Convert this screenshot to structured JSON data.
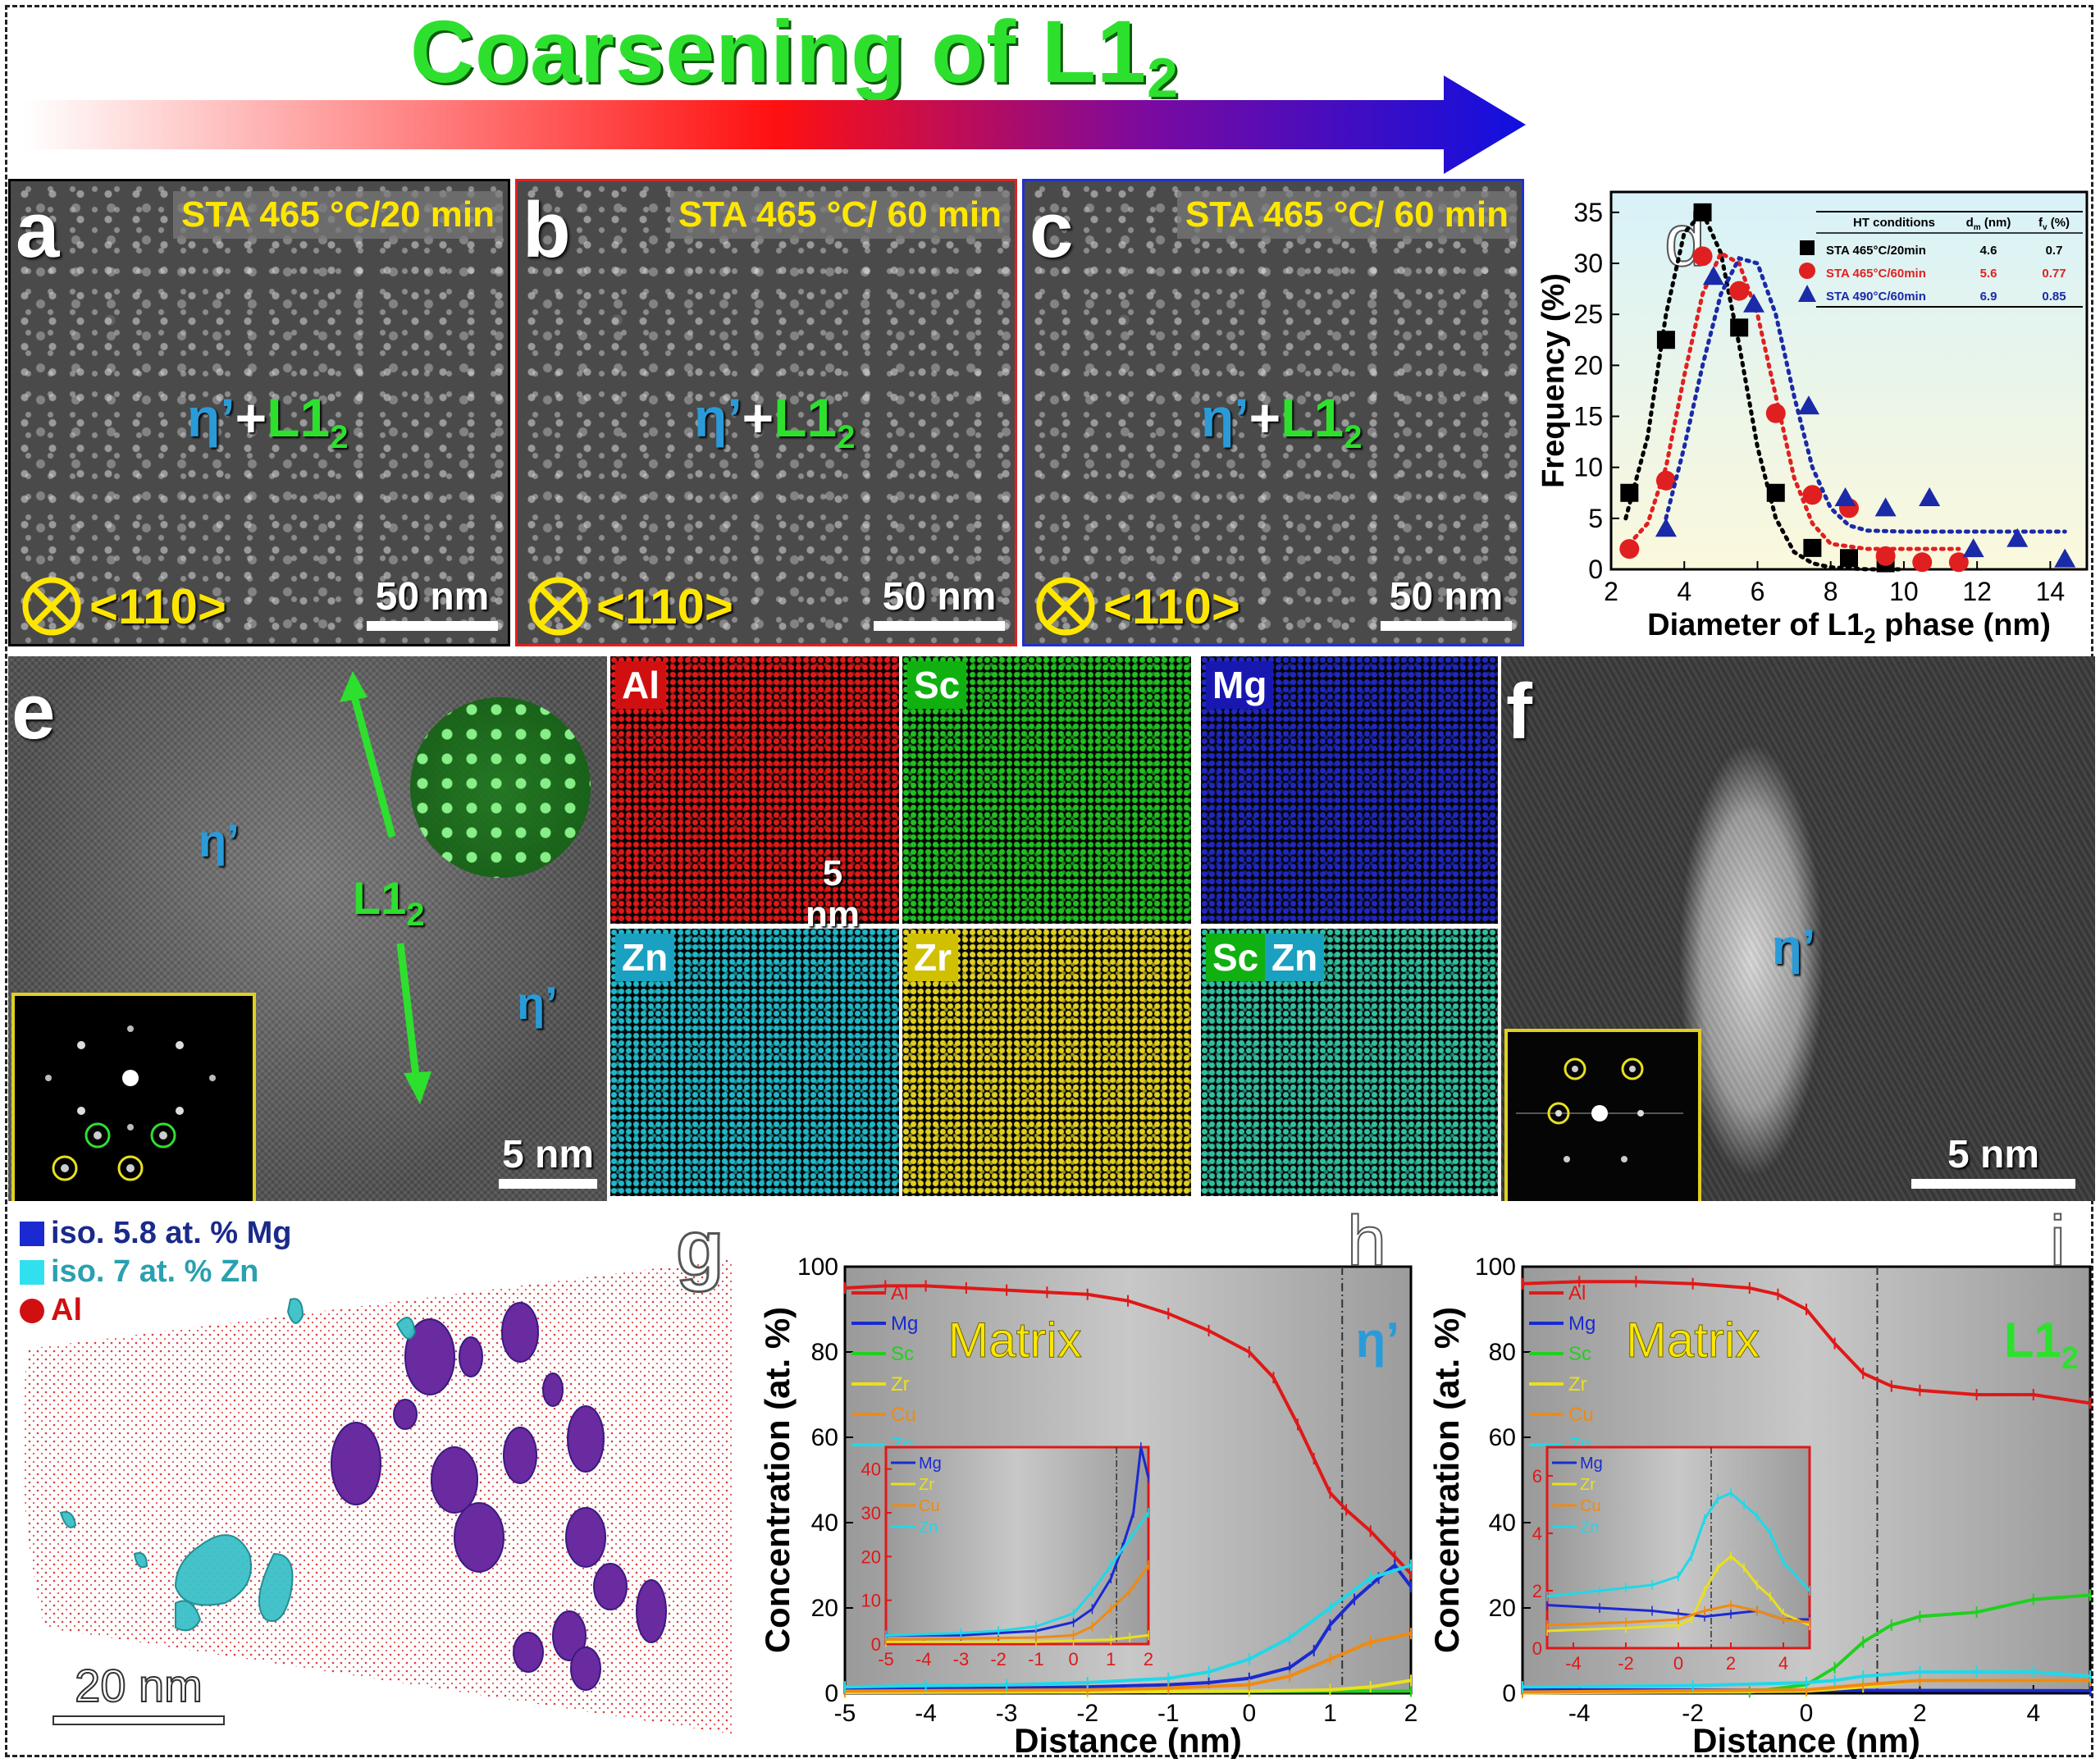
{
  "title": {
    "main": "Coarsening of L1",
    "sub": "2"
  },
  "panels_stem": [
    {
      "tag": "a",
      "condition": "STA 465 °C/20 min",
      "phase_eta": "η’",
      "phase_plus": "+",
      "phase_l1": "L1",
      "phase_sub": "2",
      "zone": "<110>",
      "scale": "50 nm",
      "border": "#000000"
    },
    {
      "tag": "b",
      "condition": "STA 465 °C/ 60 min",
      "phase_eta": "η’",
      "phase_plus": "+",
      "phase_l1": "L1",
      "phase_sub": "2",
      "zone": "<110>",
      "scale": "50 nm",
      "border": "#e02020"
    },
    {
      "tag": "c",
      "condition": "STA 465 °C/ 60 min",
      "phase_eta": "η’",
      "phase_plus": "+",
      "phase_l1": "L1",
      "phase_sub": "2",
      "zone": "<110>",
      "scale": "50 nm",
      "border": "#2030d0"
    }
  ],
  "panel_e": {
    "tag": "e",
    "eta1": "η’",
    "eta2": "η’",
    "l12": "L1",
    "l12_sub": "2",
    "scale": "5 nm"
  },
  "eds_maps": [
    {
      "label": "Al",
      "color": "#e01818",
      "chip": "#d01010"
    },
    {
      "label": "Sc",
      "color": "#20c020",
      "chip": "#10b010"
    },
    {
      "label": "Mg",
      "color": "#2028c0",
      "chip": "#1818b0"
    },
    {
      "label": "Zn",
      "color": "#20b8c8",
      "chip": "#1aa0c0"
    },
    {
      "label": "Zr",
      "color": "#e0d020",
      "chip": "#d0c000"
    },
    {
      "label": "Sc",
      "label2": "Zn",
      "color": "#30c0a0",
      "chip": "#10b010",
      "chip2": "#1aa0c0"
    }
  ],
  "eds_scale": "5 nm",
  "panel_f": {
    "tag": "f",
    "eta": "η’",
    "scale": "5 nm"
  },
  "panel_g": {
    "tag": "g",
    "legend": [
      "iso. 5.8 at. % Mg",
      "iso. 7 at. % Zn",
      "Al"
    ],
    "scale": "20 nm"
  },
  "chart_data": [
    {
      "id": "d",
      "type": "scatter",
      "tag": "d",
      "xlabel": "Diameter of L1",
      "xlabel_sub": "2",
      "xlabel_tail": " phase (nm)",
      "ylabel": "Frequency (%)",
      "xlim": [
        2,
        15
      ],
      "ylim": [
        0,
        37
      ],
      "xticks": [
        2,
        4,
        6,
        8,
        10,
        12,
        14
      ],
      "yticks": [
        0,
        5,
        10,
        15,
        20,
        25,
        30,
        35
      ],
      "table": {
        "headers": [
          "HT conditions",
          "d",
          "m",
          " (nm)",
          "f",
          "v",
          " (%)"
        ],
        "rows": [
          {
            "cond": "STA 465°C/20min",
            "dm": "4.6",
            "fv": "0.7",
            "color": "#000000"
          },
          {
            "cond": "STA 465°C/60min",
            "dm": "5.6",
            "fv": "0.77",
            "color": "#e02020"
          },
          {
            "cond": "STA 490°C/60min",
            "dm": "6.9",
            "fv": "0.85",
            "color": "#1a2aa8"
          }
        ]
      },
      "series": [
        {
          "marker": "square",
          "color": "#000000",
          "x": [
            2.5,
            3.5,
            4.5,
            5.5,
            6.5,
            7.5,
            8.5,
            9.5
          ],
          "y": [
            7.5,
            22.5,
            35,
            23.7,
            7.5,
            2.1,
            1.1,
            0.6
          ],
          "fit_x": [
            2.4,
            3,
            3.5,
            4,
            4.5,
            5,
            5.5,
            6,
            6.5,
            7,
            7.5,
            8,
            9,
            10
          ],
          "fit_y": [
            5,
            13,
            25,
            33,
            35,
            31,
            22,
            12,
            5,
            1.7,
            0.6,
            0.2,
            0,
            0
          ]
        },
        {
          "marker": "circle",
          "color": "#e02020",
          "x": [
            2.5,
            3.5,
            4.5,
            5.5,
            6.5,
            7.5,
            8.5,
            9.5,
            10.5,
            11.5
          ],
          "y": [
            2,
            8.7,
            30.7,
            27.3,
            15.3,
            7.3,
            6,
            1.3,
            0.7,
            0.7
          ],
          "fit_x": [
            2.5,
            3,
            3.5,
            4,
            4.5,
            5,
            5.5,
            6,
            6.5,
            7,
            7.5,
            8,
            9,
            10,
            11.5
          ],
          "fit_y": [
            2.5,
            4.5,
            10,
            19,
            27,
            31,
            30,
            25,
            17,
            9,
            4.5,
            2.5,
            2,
            2,
            2
          ]
        },
        {
          "marker": "triangle",
          "color": "#1a2aa8",
          "x": [
            3.5,
            4.8,
            5.9,
            7.4,
            8.4,
            9.5,
            10.7,
            11.9,
            13.1,
            14.4
          ],
          "y": [
            4,
            28.7,
            26,
            16,
            7,
            6,
            7,
            2,
            3,
            1
          ],
          "fit_x": [
            3.5,
            4,
            4.5,
            5,
            5.5,
            6,
            6.5,
            7,
            7.5,
            8,
            8.5,
            9,
            10,
            11,
            12,
            13,
            14.4
          ],
          "fit_y": [
            5,
            12,
            20,
            27,
            30.5,
            30,
            25,
            17,
            10,
            6,
            4.3,
            3.8,
            3.7,
            3.7,
            3.7,
            3.7,
            3.7
          ]
        }
      ]
    },
    {
      "id": "h",
      "type": "line",
      "tag": "h",
      "xlabel": "Distance (nm)",
      "ylabel": "Concentration (at. %)",
      "xlim": [
        -5,
        2
      ],
      "ylim": [
        0,
        100
      ],
      "xticks": [
        -5,
        -4,
        -3,
        -2,
        -1,
        0,
        1,
        2
      ],
      "yticks": [
        0,
        20,
        40,
        60,
        80,
        100
      ],
      "region_left": "Matrix",
      "region_right": "η’",
      "divider_x": 1.15,
      "legend": [
        {
          "name": "Al",
          "color": "#e01818"
        },
        {
          "name": "Mg",
          "color": "#1a2ad0"
        },
        {
          "name": "Sc",
          "color": "#20d020"
        },
        {
          "name": "Zr",
          "color": "#e8e020"
        },
        {
          "name": "Cu",
          "color": "#f08a10"
        },
        {
          "name": "Zn",
          "color": "#20d8e8"
        }
      ],
      "series": [
        {
          "name": "Al",
          "color": "#e01818",
          "x": [
            -5,
            -4.5,
            -4,
            -3.5,
            -3,
            -2.5,
            -2,
            -1.5,
            -1,
            -0.5,
            0,
            0.3,
            0.6,
            0.8,
            1,
            1.2,
            1.5,
            1.8,
            2
          ],
          "y": [
            95,
            95.5,
            95.5,
            95,
            94.5,
            94,
            93.5,
            92,
            89,
            85,
            80,
            74,
            63,
            55,
            47,
            43,
            38,
            32,
            28
          ]
        },
        {
          "name": "Mg",
          "color": "#1a2ad0",
          "x": [
            -5,
            -4,
            -3,
            -2,
            -1,
            -0.5,
            0,
            0.5,
            0.8,
            1,
            1.3,
            1.6,
            1.8,
            2
          ],
          "y": [
            1,
            1,
            1.2,
            1.5,
            2,
            2.5,
            3.5,
            6,
            10,
            16,
            22,
            27,
            30,
            25
          ]
        },
        {
          "name": "Sc",
          "color": "#20d020",
          "x": [
            -5,
            2
          ],
          "y": [
            0.3,
            0.5
          ]
        },
        {
          "name": "Zr",
          "color": "#e8e020",
          "x": [
            -5,
            -2,
            0,
            1,
            1.5,
            2
          ],
          "y": [
            0.2,
            0.3,
            0.5,
            0.8,
            1.5,
            3
          ]
        },
        {
          "name": "Cu",
          "color": "#f08a10",
          "x": [
            -5,
            -2,
            -1,
            0,
            0.5,
            1,
            1.5,
            2
          ],
          "y": [
            0.5,
            0.8,
            1.2,
            2,
            4,
            8,
            12,
            14
          ]
        },
        {
          "name": "Zn",
          "color": "#20d8e8",
          "x": [
            -5,
            -4,
            -3,
            -2,
            -1,
            -0.5,
            0,
            0.5,
            1,
            1.5,
            2
          ],
          "y": [
            1.5,
            1.8,
            2,
            2.5,
            3.5,
            5,
            8,
            13,
            20,
            27,
            30
          ]
        }
      ],
      "inset": {
        "xlim": [
          -5,
          2
        ],
        "ylim": [
          0,
          45
        ],
        "xticks": [
          -5,
          -4,
          -3,
          -2,
          -1,
          0,
          1,
          2
        ],
        "yticks": [
          0,
          10,
          20,
          30,
          40
        ],
        "divider_x": 1.15,
        "legend": [
          {
            "name": "Mg",
            "color": "#1a2ad0"
          },
          {
            "name": "Zr",
            "color": "#e8e020"
          },
          {
            "name": "Cu",
            "color": "#f08a10"
          },
          {
            "name": "Zn",
            "color": "#20d8e8"
          }
        ],
        "series": [
          {
            "name": "Mg",
            "color": "#1a2ad0",
            "x": [
              -5,
              -3,
              -2,
              -1,
              0,
              0.5,
              1,
              1.3,
              1.6,
              1.8,
              2
            ],
            "y": [
              2,
              2,
              2.5,
              3,
              5,
              8,
              15,
              22,
              30,
              45,
              38
            ]
          },
          {
            "name": "Zr",
            "color": "#e8e020",
            "x": [
              -5,
              -1,
              0,
              1,
              1.5,
              2
            ],
            "y": [
              0.5,
              0.5,
              0.8,
              1,
              1.5,
              2
            ]
          },
          {
            "name": "Cu",
            "color": "#f08a10",
            "x": [
              -5,
              -1,
              0,
              0.5,
              1,
              1.5,
              2
            ],
            "y": [
              1,
              1.5,
              2,
              4,
              8,
              12,
              18
            ]
          },
          {
            "name": "Zn",
            "color": "#20d8e8",
            "x": [
              -5,
              -3,
              -2,
              -1,
              0,
              0.5,
              1,
              1.5,
              2
            ],
            "y": [
              2,
              2.5,
              3,
              4,
              7,
              12,
              18,
              24,
              30
            ]
          }
        ]
      }
    },
    {
      "id": "i",
      "type": "line",
      "tag": "i",
      "xlabel": "Distance (nm)",
      "ylabel": "Concentration (at. %)",
      "xlim": [
        -5,
        5
      ],
      "ylim": [
        0,
        100
      ],
      "xticks": [
        -4,
        -2,
        0,
        2,
        4
      ],
      "yticks": [
        0,
        20,
        40,
        60,
        80,
        100
      ],
      "region_left": "Matrix",
      "region_right": "L1",
      "region_right_sub": "2",
      "divider_x": 1.25,
      "legend": [
        {
          "name": "Al",
          "color": "#e01818"
        },
        {
          "name": "Mg",
          "color": "#1a2ad0"
        },
        {
          "name": "Sc",
          "color": "#20d020"
        },
        {
          "name": "Zr",
          "color": "#e8e020"
        },
        {
          "name": "Cu",
          "color": "#f08a10"
        },
        {
          "name": "Zn",
          "color": "#20d8e8"
        }
      ],
      "series": [
        {
          "name": "Al",
          "color": "#e01818",
          "x": [
            -5,
            -4,
            -3,
            -2,
            -1,
            -0.5,
            0,
            0.5,
            1,
            1.5,
            2,
            3,
            4,
            5
          ],
          "y": [
            96,
            96.5,
            96.5,
            96,
            95,
            93.5,
            90,
            82,
            75,
            72,
            71,
            70,
            70,
            68
          ]
        },
        {
          "name": "Mg",
          "color": "#1a2ad0",
          "x": [
            -5,
            5
          ],
          "y": [
            0.8,
            0.6
          ]
        },
        {
          "name": "Sc",
          "color": "#20d020",
          "x": [
            -5,
            -1,
            0,
            0.5,
            1,
            1.5,
            2,
            3,
            4,
            5
          ],
          "y": [
            0.2,
            0.3,
            2,
            6,
            12,
            16,
            18,
            19,
            22,
            23
          ]
        },
        {
          "name": "Zr",
          "color": "#e8e020",
          "x": [
            -5,
            0,
            1,
            2,
            5
          ],
          "y": [
            0.1,
            0.5,
            1.5,
            3,
            3
          ]
        },
        {
          "name": "Cu",
          "color": "#f08a10",
          "x": [
            -5,
            0,
            1,
            2,
            5
          ],
          "y": [
            0.3,
            0.8,
            2,
            3,
            3
          ]
        },
        {
          "name": "Zn",
          "color": "#20d8e8",
          "x": [
            -5,
            -2,
            0,
            0.5,
            1,
            2,
            3,
            4,
            5
          ],
          "y": [
            1.5,
            1.8,
            2.5,
            3,
            4,
            5,
            5,
            5,
            4
          ]
        }
      ],
      "inset": {
        "xlim": [
          -5,
          5
        ],
        "ylim": [
          0,
          7
        ],
        "xticks": [
          -4,
          -2,
          0,
          2,
          4
        ],
        "yticks": [
          0,
          2,
          4,
          6
        ],
        "divider_x": 1.25,
        "legend": [
          {
            "name": "Mg",
            "color": "#1a2ad0"
          },
          {
            "name": "Zr",
            "color": "#e8e020"
          },
          {
            "name": "Cu",
            "color": "#f08a10"
          },
          {
            "name": "Zn",
            "color": "#20d8e8"
          }
        ],
        "series": [
          {
            "name": "Mg",
            "color": "#1a2ad0",
            "x": [
              -5,
              -3,
              -1,
              0,
              1,
              2,
              3,
              4,
              5
            ],
            "y": [
              1.5,
              1.4,
              1.3,
              1.2,
              1.1,
              1.2,
              1.3,
              1,
              1
            ]
          },
          {
            "name": "Zr",
            "color": "#e8e020",
            "x": [
              -5,
              -2,
              0,
              0.5,
              1,
              1.5,
              2,
              2.5,
              3,
              3.5,
              4,
              5
            ],
            "y": [
              0.6,
              0.7,
              0.8,
              1,
              2,
              2.8,
              3.2,
              2.8,
              2.2,
              1.8,
              1.2,
              0.8
            ]
          },
          {
            "name": "Cu",
            "color": "#f08a10",
            "x": [
              -5,
              -2,
              0,
              1,
              2,
              3,
              4,
              5
            ],
            "y": [
              0.8,
              0.9,
              1,
              1.3,
              1.5,
              1.3,
              1,
              0.9
            ]
          },
          {
            "name": "Zn",
            "color": "#20d8e8",
            "x": [
              -5,
              -3,
              -2,
              -1,
              0,
              0.5,
              1,
              1.5,
              2,
              2.5,
              3,
              3.5,
              4,
              5
            ],
            "y": [
              1.8,
              2,
              2.1,
              2.2,
              2.5,
              3.2,
              4.5,
              5.2,
              5.4,
              5,
              4.6,
              4,
              3,
              2
            ]
          }
        ]
      }
    }
  ]
}
